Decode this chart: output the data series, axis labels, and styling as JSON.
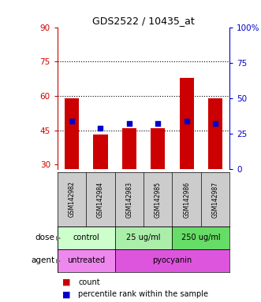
{
  "title": "GDS2522 / 10435_at",
  "samples": [
    "GSM142982",
    "GSM142984",
    "GSM142983",
    "GSM142985",
    "GSM142986",
    "GSM142987"
  ],
  "red_values": [
    59,
    43,
    46,
    46,
    68,
    59
  ],
  "blue_values": [
    49,
    46,
    48,
    48,
    49,
    48
  ],
  "left_yticks": [
    30,
    45,
    60,
    75,
    90
  ],
  "right_ylabels": [
    "0",
    "25",
    "50",
    "75",
    "100%"
  ],
  "right_tick_pcts": [
    0,
    25,
    50,
    75,
    100
  ],
  "ymin": 28,
  "ymax": 90,
  "hlines": [
    45,
    60,
    75
  ],
  "dose_colors": [
    "#ccffcc",
    "#aaeeaa",
    "#66dd66"
  ],
  "dose_labels": [
    "control",
    "25 ug/ml",
    "250 ug/ml"
  ],
  "dose_ranges": [
    [
      0,
      2
    ],
    [
      2,
      4
    ],
    [
      4,
      6
    ]
  ],
  "agent_colors": [
    "#ee88ee",
    "#dd55dd"
  ],
  "agent_labels": [
    "untreated",
    "pyocyanin"
  ],
  "agent_ranges": [
    [
      0,
      2
    ],
    [
      2,
      6
    ]
  ],
  "sample_bg": "#cccccc",
  "bar_bottom": 28,
  "left_color": "#cc0000",
  "blue_color": "#0000cc",
  "bg_color": "#ffffff",
  "legend_red_label": "count",
  "legend_blue_label": "percentile rank within the sample",
  "bar_width": 0.5
}
